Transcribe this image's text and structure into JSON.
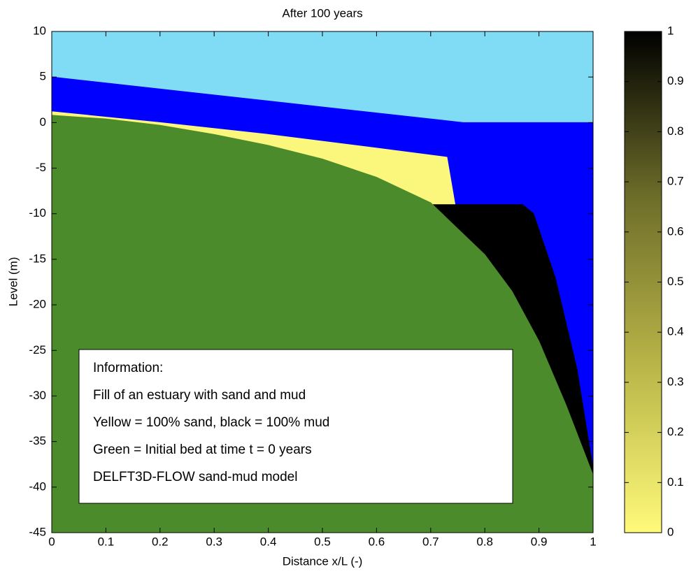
{
  "chart_data": {
    "type": "cross-section",
    "title": "After 100 years",
    "x_label": "Distance x/L (-)",
    "y_label": "Level (m)",
    "xlim": [
      0,
      1
    ],
    "ylim": [
      -45,
      10
    ],
    "xticks": [
      0,
      0.1,
      0.2,
      0.3,
      0.4,
      0.5,
      0.6,
      0.7,
      0.8,
      0.9,
      1
    ],
    "yticks": [
      -45,
      -40,
      -35,
      -30,
      -25,
      -20,
      -15,
      -10,
      -5,
      0,
      5,
      10
    ],
    "background": "#80dcf4",
    "series": [
      {
        "color": "#0000ff",
        "x": [
          0,
          0.73,
          0.76,
          1
        ],
        "values": [
          5,
          0.2,
          0,
          0
        ]
      },
      {
        "color": "#fbf67c",
        "x": [
          0,
          0.2,
          0.4,
          0.6,
          0.73,
          0.745
        ],
        "values": [
          1.2,
          0,
          -1.3,
          -2.8,
          -3.8,
          -9
        ]
      },
      {
        "color": "#000000",
        "x": [
          0.68,
          0.745,
          0.87,
          0.89,
          0.93,
          0.97,
          1
        ],
        "values": [
          -9,
          -9,
          -9,
          -10,
          -17,
          -27,
          -38
        ]
      },
      {
        "color": "#4b8b2b",
        "x": [
          0,
          0.1,
          0.2,
          0.3,
          0.4,
          0.5,
          0.6,
          0.7,
          0.8,
          0.85,
          0.9,
          0.95,
          1
        ],
        "values": [
          0.8,
          0.4,
          -0.3,
          -1.3,
          -2.5,
          -4,
          -6,
          -8.8,
          -14.5,
          -18.5,
          -24,
          -31,
          -38.7
        ]
      }
    ],
    "colorbar": {
      "lim": [
        0,
        1
      ],
      "ticks": [
        0,
        0.1,
        0.2,
        0.3,
        0.4,
        0.5,
        0.6,
        0.7,
        0.8,
        0.9,
        1
      ],
      "colors": [
        "#fffa7a",
        "#b9b548",
        "#6e6e2a",
        "#000000"
      ]
    },
    "annotation": [
      "Information:",
      "Fill of an estuary with sand and mud",
      "Yellow = 100% sand, black = 100% mud",
      "Green = Initial bed at time t = 0 years",
      "DELFT3D-FLOW sand-mud model"
    ]
  }
}
